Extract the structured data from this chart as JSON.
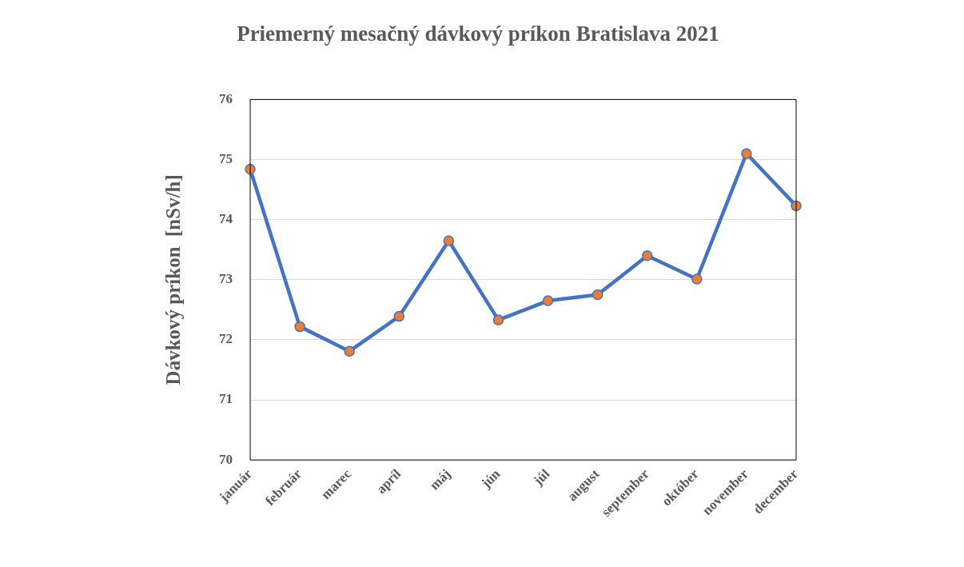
{
  "chart_data": {
    "type": "line",
    "title": "Priemerný mesačný dávkový príkon Bratislava 2021",
    "ylabel": "Dávkový príkon  [nSv/h]",
    "categories": [
      "január",
      "február",
      "marec",
      "apríl",
      "máj",
      "jún",
      "júl",
      "august",
      "september",
      "október",
      "november",
      "december"
    ],
    "series": [
      {
        "color": "#4472c4",
        "values": [
          74.84,
          72.22,
          71.81,
          72.39,
          73.65,
          72.33,
          72.65,
          72.75,
          73.4,
          73.01,
          75.1,
          74.23
        ]
      }
    ],
    "ylim": [
      70,
      76
    ],
    "yticks": [
      70,
      71,
      72,
      73,
      74,
      75,
      76
    ],
    "grid": "y",
    "legend": false,
    "marker": "circle",
    "line_style": "solid"
  }
}
